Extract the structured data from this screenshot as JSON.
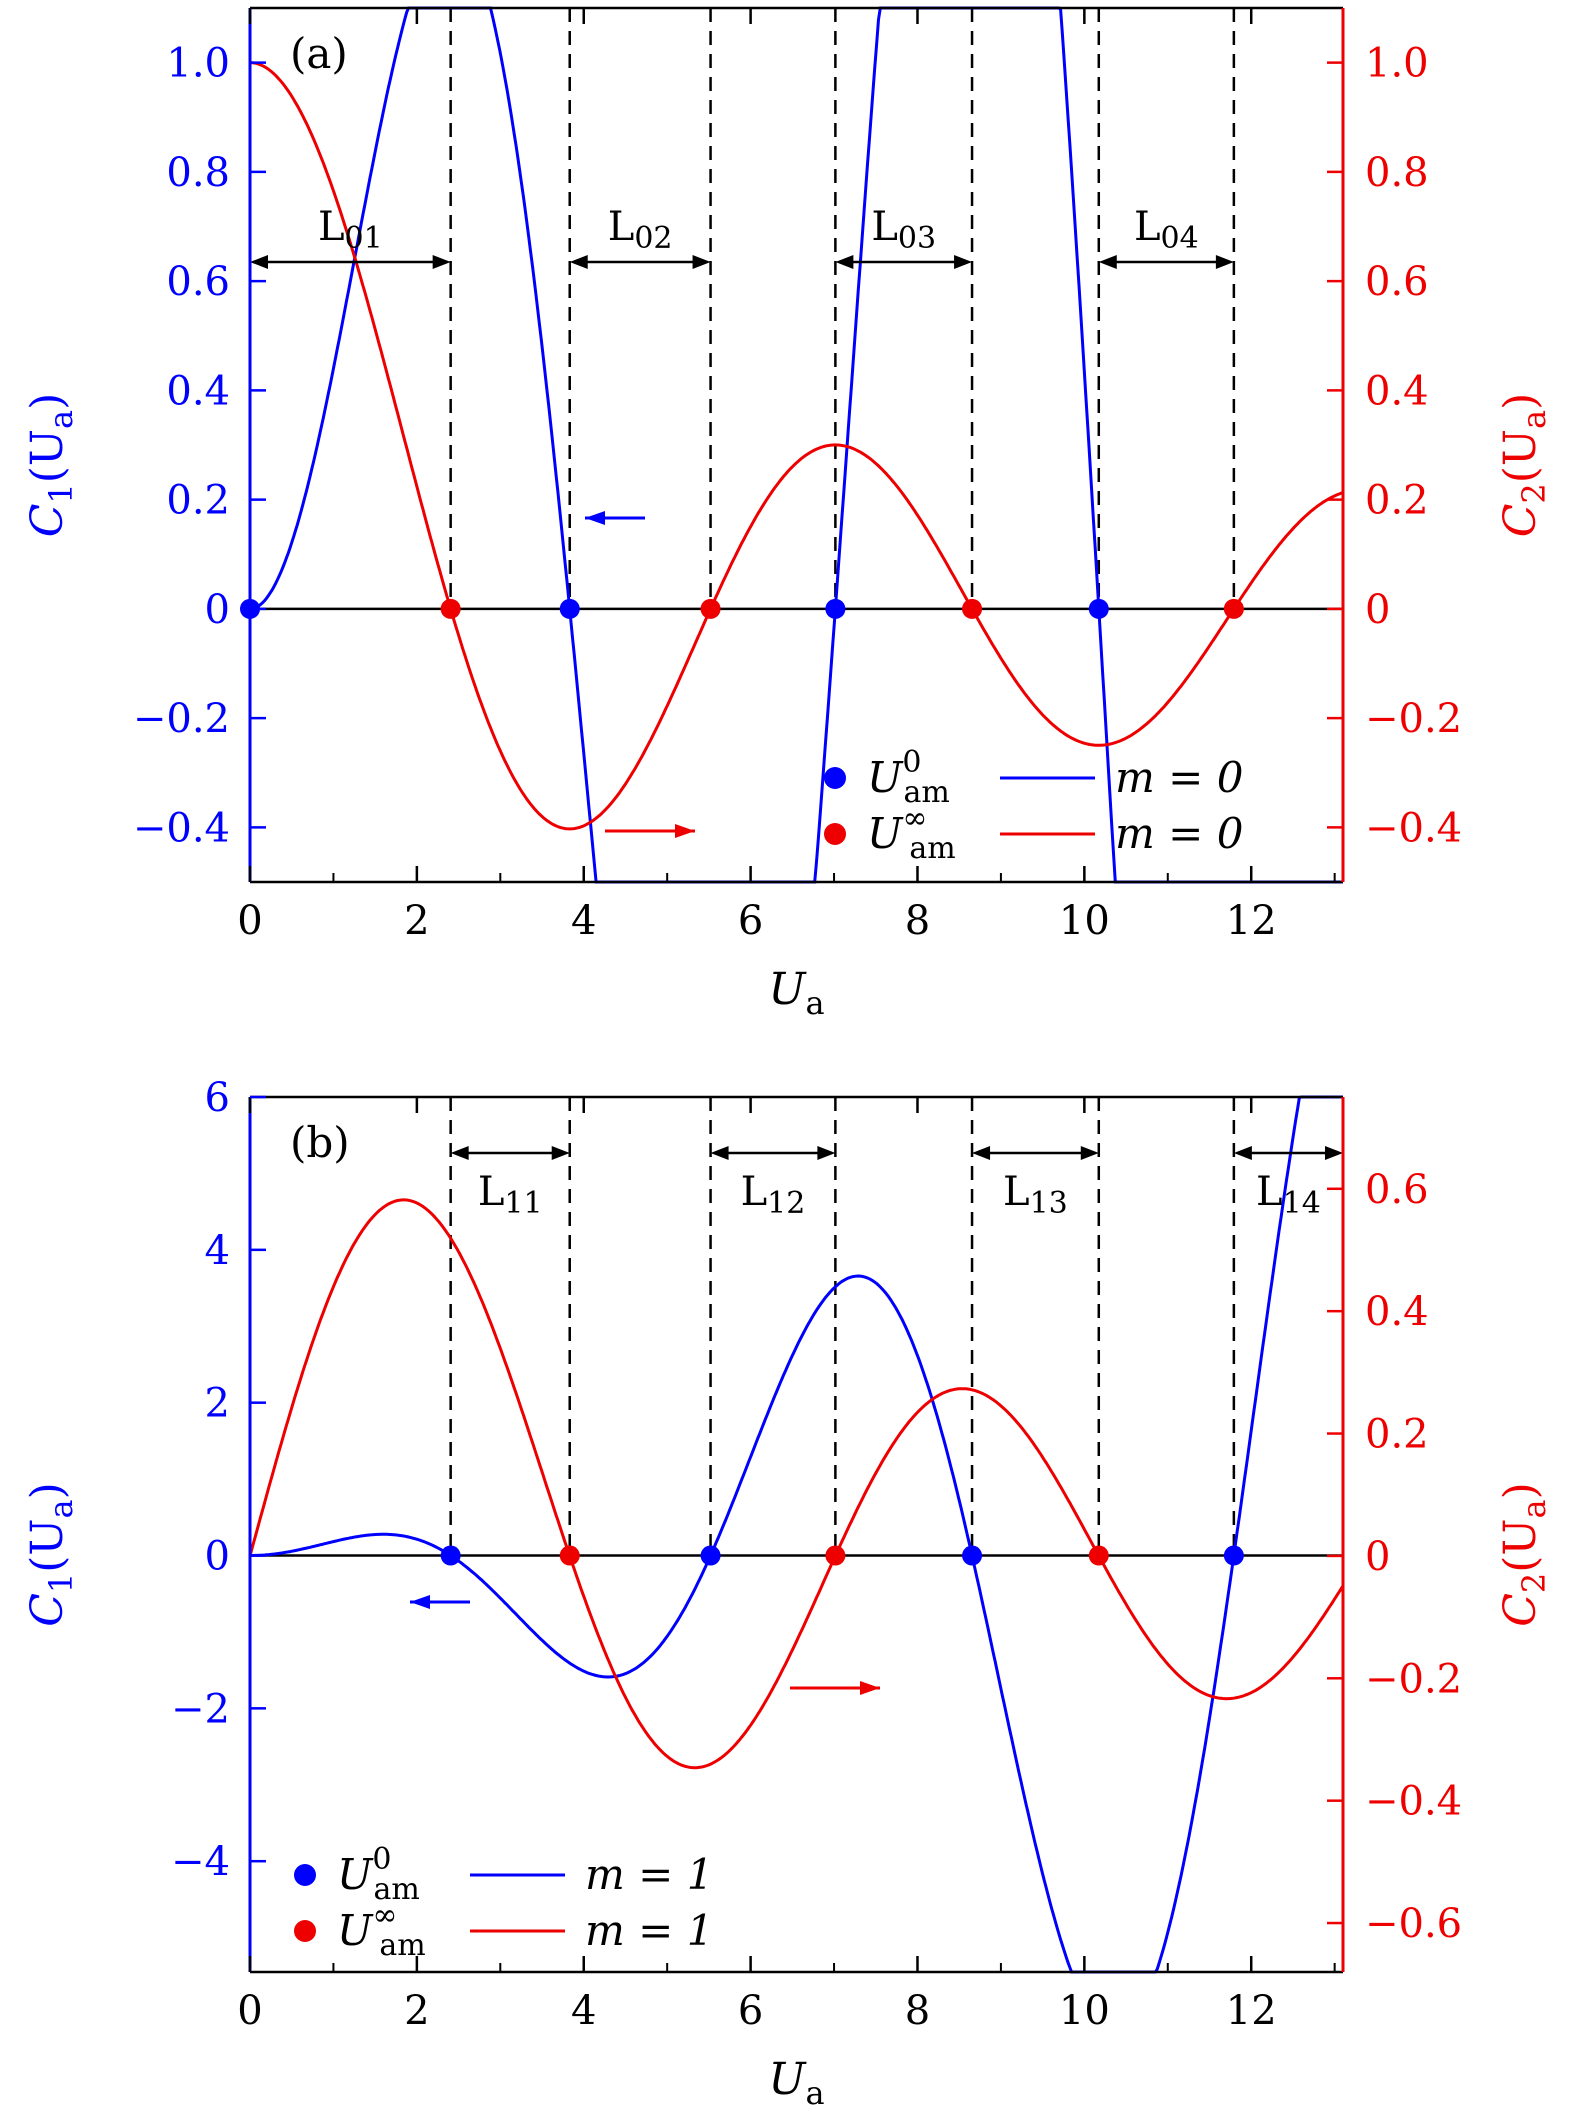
{
  "chart_data": [
    {
      "type": "line",
      "panel_label": "(a)",
      "xlabel": "U",
      "xlabel_sub": "a",
      "ylabel_left": "C",
      "ylabel_left_sub1": "1",
      "ylabel_left_arg": "(U",
      "ylabel_left_argsub": "a",
      "ylabel_left_close": ")",
      "ylabel_right": "C",
      "ylabel_right_sub1": "2",
      "ylabel_right_arg": "(U",
      "ylabel_right_argsub": "a",
      "ylabel_right_close": ")",
      "xlim": [
        0,
        13.1
      ],
      "ylim_left": [
        -0.5,
        1.1
      ],
      "ylim_right": [
        -0.5,
        1.1
      ],
      "x_ticks": [
        0,
        2,
        4,
        6,
        8,
        10,
        12
      ],
      "x_tick_labels": [
        "0",
        "2",
        "4",
        "6",
        "8",
        "10",
        "12"
      ],
      "y_left_ticks": [
        -0.4,
        -0.2,
        0,
        0.2,
        0.4,
        0.6,
        0.8,
        1.0
      ],
      "y_left_tick_labels": [
        "−0.4",
        "−0.2",
        "0",
        "0.2",
        "0.4",
        "0.6",
        "0.8",
        "1.0"
      ],
      "y_right_ticks": [
        -0.4,
        -0.2,
        0,
        0.2,
        0.4,
        0.6,
        0.8,
        1.0
      ],
      "y_right_tick_labels": [
        "−0.4",
        "−0.2",
        "0",
        "0.2",
        "0.4",
        "0.6",
        "0.8",
        "1.0"
      ],
      "series": [
        {
          "name": "m = 0",
          "axis": "left",
          "color": "#0000ff",
          "function": "C1 = x*J1(x)/J0-type (blue, m=0)"
        },
        {
          "name": "m = 0",
          "axis": "right",
          "color": "#ee0000",
          "function": "C2 = J0(x) (red, m=0)"
        }
      ],
      "points_blue_x": [
        0,
        3.832,
        7.016,
        10.173
      ],
      "points_red_x": [
        2.405,
        5.52,
        8.654,
        11.792
      ],
      "vlines_x": [
        2.405,
        3.832,
        5.52,
        7.016,
        8.654,
        10.173,
        11.792
      ],
      "intervals": [
        {
          "label": "L",
          "sub": "01",
          "x0": 0,
          "x1": 2.405
        },
        {
          "label": "L",
          "sub": "02",
          "x0": 3.832,
          "x1": 5.52
        },
        {
          "label": "L",
          "sub": "03",
          "x0": 7.016,
          "x1": 8.654
        },
        {
          "label": "L",
          "sub": "04",
          "x0": 10.173,
          "x1": 11.792
        }
      ],
      "legend": [
        {
          "marker_color": "#0000ff",
          "sym": "U",
          "sub": "am",
          "sup": "0",
          "line_color": "#0000ff",
          "text": "m = 0"
        },
        {
          "marker_color": "#ee0000",
          "sym": "U",
          "sub": "am",
          "sup": "∞",
          "line_color": "#ee0000",
          "text": "m = 0"
        }
      ]
    },
    {
      "type": "line",
      "panel_label": "(b)",
      "xlabel": "U",
      "xlabel_sub": "a",
      "ylabel_left": "C",
      "ylabel_left_sub1": "1",
      "ylabel_left_arg": "(U",
      "ylabel_left_argsub": "a",
      "ylabel_left_close": ")",
      "ylabel_right": "C",
      "ylabel_right_sub1": "2",
      "ylabel_right_arg": "(U",
      "ylabel_right_argsub": "a",
      "ylabel_right_close": ")",
      "xlim": [
        0,
        13.1
      ],
      "ylim_left": [
        -5.45,
        6
      ],
      "ylim_right": [
        -0.68,
        0.75
      ],
      "x_ticks": [
        0,
        2,
        4,
        6,
        8,
        10,
        12
      ],
      "x_tick_labels": [
        "0",
        "2",
        "4",
        "6",
        "8",
        "10",
        "12"
      ],
      "y_left_ticks": [
        -4,
        -2,
        0,
        2,
        4,
        6
      ],
      "y_left_tick_labels": [
        "−4",
        "−2",
        "0",
        "2",
        "4",
        "6"
      ],
      "y_right_ticks": [
        -0.6,
        -0.4,
        -0.2,
        0,
        0.2,
        0.4,
        0.6
      ],
      "y_right_tick_labels": [
        "−0.6",
        "−0.4",
        "−0.2",
        "0",
        "0.2",
        "0.4",
        "0.6"
      ],
      "series": [
        {
          "name": "m = 1",
          "axis": "left",
          "color": "#0000ff",
          "function": "C1 (blue, m=1)"
        },
        {
          "name": "m = 1",
          "axis": "right",
          "color": "#ee0000",
          "function": "C2 = J1(x) (red, m=1)"
        }
      ],
      "points_blue_x": [
        2.405,
        5.52,
        8.654,
        11.792
      ],
      "points_red_x": [
        3.832,
        7.016,
        10.173
      ],
      "vlines_x": [
        2.405,
        3.832,
        5.52,
        7.016,
        8.654,
        10.173,
        11.792
      ],
      "intervals": [
        {
          "label": "L",
          "sub": "11",
          "x0": 2.405,
          "x1": 3.832
        },
        {
          "label": "L",
          "sub": "12",
          "x0": 5.52,
          "x1": 7.016
        },
        {
          "label": "L",
          "sub": "13",
          "x0": 8.654,
          "x1": 10.173
        },
        {
          "label": "L",
          "sub": "14",
          "x0": 11.792,
          "x1": 13.1
        }
      ],
      "legend": [
        {
          "marker_color": "#0000ff",
          "sym": "U",
          "sub": "am",
          "sup": "0",
          "line_color": "#0000ff",
          "text": "m = 1"
        },
        {
          "marker_color": "#ee0000",
          "sym": "U",
          "sub": "am",
          "sup": "∞",
          "line_color": "#ee0000",
          "text": "m = 1"
        }
      ]
    }
  ]
}
